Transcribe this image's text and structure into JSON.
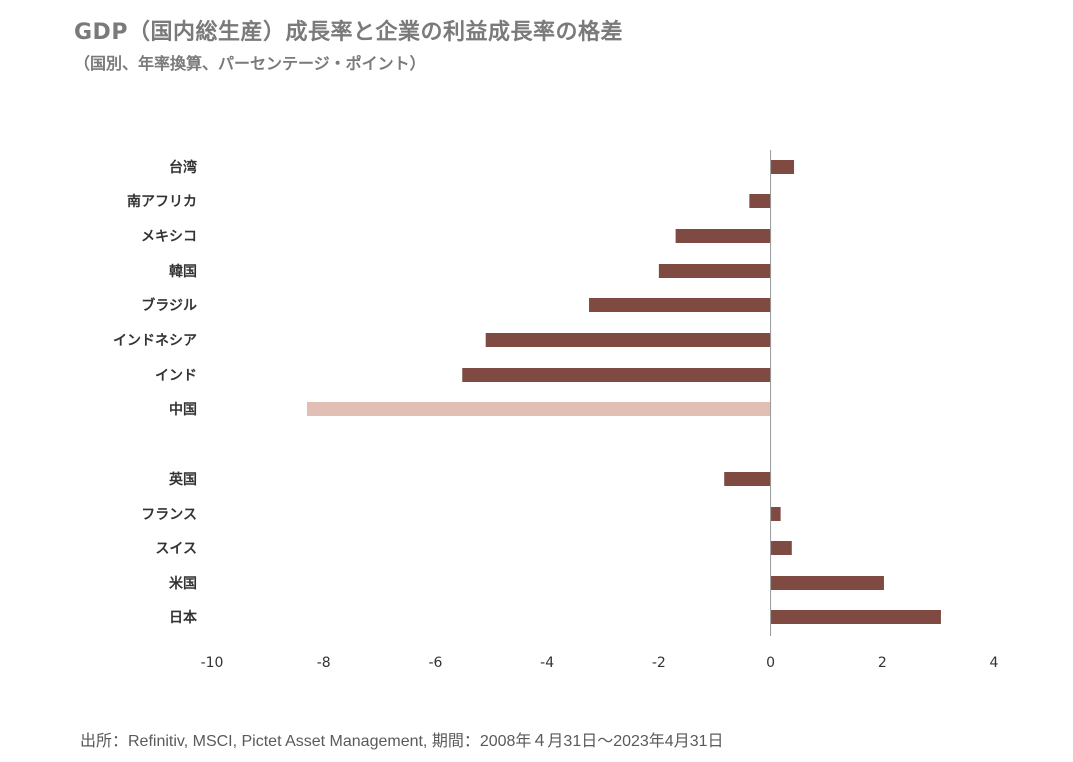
{
  "title": "GDP（国内総生産）成長率と企業の利益成長率の格差",
  "subtitle": "（国別、年率換算、パーセンテージ・ポイント）",
  "source": "出所：Refinitiv, MSCI, Pictet Asset Management, 期間：2008年４月31日～2023年4月31日",
  "colors": {
    "bar": "#7f4a42",
    "highlight": "#e2bfb4",
    "axis": "#999999"
  },
  "chart_data": {
    "type": "bar",
    "orientation": "horizontal",
    "categories": [
      "台湾",
      "南アフリカ",
      "メキシコ",
      "韓国",
      "ブラジル",
      "インドネシア",
      "インド",
      "中国",
      "英国",
      "フランス",
      "スイス",
      "米国",
      "日本"
    ],
    "values": [
      0.42,
      -0.38,
      -1.7,
      -2.0,
      -3.25,
      -5.1,
      -5.52,
      -8.3,
      -0.83,
      0.18,
      0.38,
      2.03,
      3.05
    ],
    "highlight": [
      "中国"
    ],
    "xlim": [
      -10,
      4
    ],
    "xticks": [
      "-10",
      "-8",
      "-6",
      "-4",
      "-2",
      "0",
      "2",
      "4"
    ],
    "grid": false,
    "legend": "none"
  }
}
